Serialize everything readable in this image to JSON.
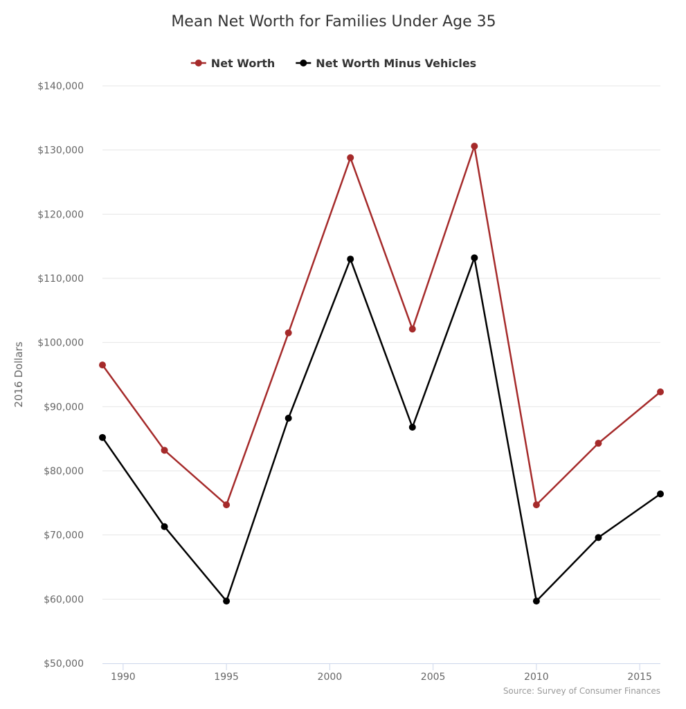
{
  "chart_data": {
    "type": "line",
    "title": "Mean Net Worth for Families Under Age 35",
    "ylabel": "2016 Dollars",
    "xlabel": "",
    "x": [
      1989,
      1992,
      1995,
      1998,
      2001,
      2004,
      2007,
      2010,
      2013,
      2016
    ],
    "xlim": [
      1989,
      2016
    ],
    "ylim": [
      50000,
      140000
    ],
    "x_ticks": [
      1990,
      1995,
      2000,
      2005,
      2010,
      2015
    ],
    "y_ticks": [
      50000,
      60000,
      70000,
      80000,
      90000,
      100000,
      110000,
      120000,
      130000,
      140000
    ],
    "y_tick_labels": [
      "$50,000",
      "$60,000",
      "$70,000",
      "$80,000",
      "$90,000",
      "$100,000",
      "$110,000",
      "$120,000",
      "$130,000",
      "$140,000"
    ],
    "grid": true,
    "legend_position": "top",
    "series": [
      {
        "name": "Net Worth",
        "color": "#a52a2a",
        "values": [
          96500,
          83200,
          74700,
          101500,
          128800,
          102100,
          130600,
          74700,
          84300,
          92300
        ]
      },
      {
        "name": "Net Worth Minus Vehicles",
        "color": "#000000",
        "values": [
          85200,
          71300,
          59700,
          88200,
          113000,
          86800,
          113200,
          59700,
          69600,
          76400
        ]
      }
    ],
    "credits": "Source: Survey of Consumer Finances"
  }
}
